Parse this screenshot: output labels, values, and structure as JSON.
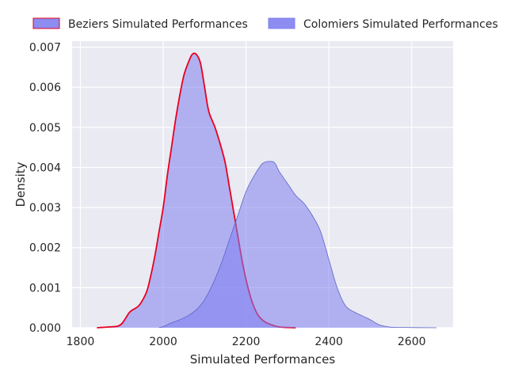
{
  "chart_data": {
    "type": "area",
    "title": "",
    "xlabel": "Simulated Performances",
    "ylabel": "Density",
    "xlim": [
      1780,
      2700
    ],
    "ylim": [
      0,
      0.00715
    ],
    "xticks": [
      1800,
      2000,
      2200,
      2400,
      2600
    ],
    "yticks": [
      0.0,
      0.001,
      0.002,
      0.003,
      0.004,
      0.005,
      0.006,
      0.007
    ],
    "xtick_labels": [
      "1800",
      "2000",
      "2200",
      "2400",
      "2600"
    ],
    "ytick_labels": [
      "0.000",
      "0.001",
      "0.002",
      "0.003",
      "0.004",
      "0.005",
      "0.006",
      "0.007"
    ],
    "grid": true,
    "legend_position": "top, outside plot",
    "series": [
      {
        "name": "Beziers Simulated Performances",
        "fill": "#8080f0",
        "fill_opacity": 0.55,
        "stroke": "#e8001e",
        "points": [
          [
            1840,
            0
          ],
          [
            1870,
            2e-05
          ],
          [
            1890,
            4e-05
          ],
          [
            1900,
            0.0001
          ],
          [
            1910,
            0.00025
          ],
          [
            1920,
            0.0004
          ],
          [
            1935,
            0.0005
          ],
          [
            1945,
            0.0006
          ],
          [
            1960,
            0.0009
          ],
          [
            1970,
            0.0013
          ],
          [
            1980,
            0.0018
          ],
          [
            1990,
            0.0024
          ],
          [
            2000,
            0.003
          ],
          [
            2010,
            0.0038
          ],
          [
            2020,
            0.0045
          ],
          [
            2030,
            0.0052
          ],
          [
            2040,
            0.0058
          ],
          [
            2050,
            0.0063
          ],
          [
            2060,
            0.0066
          ],
          [
            2070,
            0.00682
          ],
          [
            2080,
            0.00682
          ],
          [
            2090,
            0.0066
          ],
          [
            2100,
            0.006
          ],
          [
            2110,
            0.0054
          ],
          [
            2125,
            0.005
          ],
          [
            2140,
            0.0045
          ],
          [
            2150,
            0.0041
          ],
          [
            2160,
            0.0035
          ],
          [
            2170,
            0.0029
          ],
          [
            2180,
            0.0023
          ],
          [
            2190,
            0.0017
          ],
          [
            2200,
            0.0012
          ],
          [
            2210,
            0.0008
          ],
          [
            2220,
            0.0005
          ],
          [
            2230,
            0.0003
          ],
          [
            2245,
            0.00015
          ],
          [
            2260,
            8e-05
          ],
          [
            2280,
            2e-05
          ],
          [
            2320,
            0
          ]
        ]
      },
      {
        "name": "Colomiers Simulated Performances",
        "fill": "#8080f0",
        "fill_opacity": 0.55,
        "stroke": "#5a62c8",
        "points": [
          [
            1990,
            0
          ],
          [
            2000,
            3e-05
          ],
          [
            2020,
            0.00012
          ],
          [
            2040,
            0.0002
          ],
          [
            2060,
            0.0003
          ],
          [
            2080,
            0.00045
          ],
          [
            2100,
            0.0007
          ],
          [
            2120,
            0.0011
          ],
          [
            2140,
            0.0016
          ],
          [
            2160,
            0.0022
          ],
          [
            2180,
            0.0028
          ],
          [
            2200,
            0.0034
          ],
          [
            2220,
            0.0038
          ],
          [
            2240,
            0.0041
          ],
          [
            2260,
            0.00415
          ],
          [
            2270,
            0.0041
          ],
          [
            2280,
            0.0039
          ],
          [
            2300,
            0.0036
          ],
          [
            2320,
            0.0033
          ],
          [
            2340,
            0.0031
          ],
          [
            2360,
            0.0028
          ],
          [
            2380,
            0.0024
          ],
          [
            2400,
            0.0017
          ],
          [
            2420,
            0.001
          ],
          [
            2440,
            0.00055
          ],
          [
            2460,
            0.0004
          ],
          [
            2480,
            0.0003
          ],
          [
            2500,
            0.0002
          ],
          [
            2520,
            8e-05
          ],
          [
            2540,
            3e-05
          ],
          [
            2560,
            1e-05
          ],
          [
            2660,
            0
          ]
        ]
      }
    ]
  }
}
